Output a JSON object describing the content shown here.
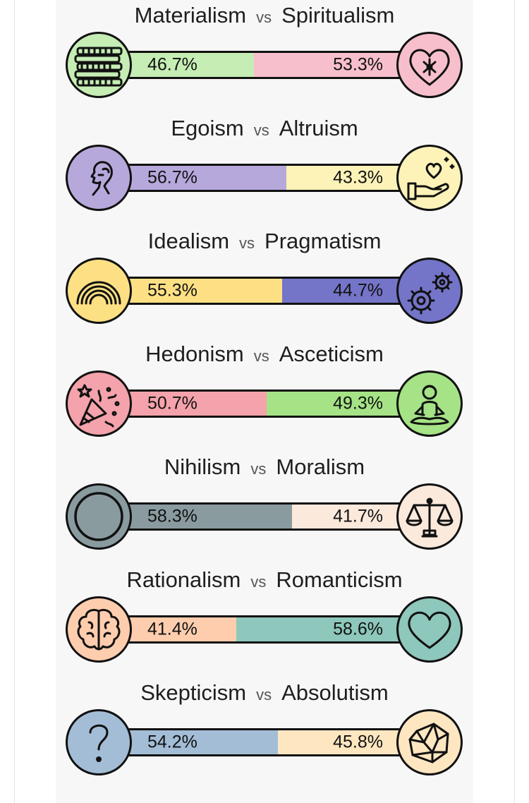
{
  "axes": [
    {
      "left": {
        "name": "Materialism",
        "pct": "46.7%",
        "value": 46.7,
        "color": "#c5edb4",
        "icon": "coins-icon"
      },
      "vs": "vs",
      "right": {
        "name": "Spiritualism",
        "pct": "53.3%",
        "value": 53.3,
        "color": "#f7bfcc",
        "icon": "heart-lotus-icon"
      }
    },
    {
      "left": {
        "name": "Egoism",
        "pct": "56.7%",
        "value": 56.7,
        "color": "#b7a8dc",
        "icon": "portrait-profile-icon"
      },
      "vs": "vs",
      "right": {
        "name": "Altruism",
        "pct": "43.3%",
        "value": 43.3,
        "color": "#fdf3b8",
        "icon": "hand-giving-heart-icon"
      }
    },
    {
      "left": {
        "name": "Idealism",
        "pct": "55.3%",
        "value": 55.3,
        "color": "#fde084",
        "icon": "rainbow-icon"
      },
      "vs": "vs",
      "right": {
        "name": "Pragmatism",
        "pct": "44.7%",
        "value": 44.7,
        "color": "#7475c8",
        "icon": "gears-icon"
      }
    },
    {
      "left": {
        "name": "Hedonism",
        "pct": "50.7%",
        "value": 50.7,
        "color": "#f4a2ab",
        "icon": "party-popper-icon"
      },
      "vs": "vs",
      "right": {
        "name": "Asceticism",
        "pct": "49.3%",
        "value": 49.3,
        "color": "#a5e386",
        "icon": "meditation-icon"
      }
    },
    {
      "left": {
        "name": "Nihilism",
        "pct": "58.3%",
        "value": 58.3,
        "color": "#8a9ba0",
        "icon": "empty-circle-icon"
      },
      "vs": "vs",
      "right": {
        "name": "Moralism",
        "pct": "41.7%",
        "value": 41.7,
        "color": "#fbe9dc",
        "icon": "scales-icon"
      }
    },
    {
      "left": {
        "name": "Rationalism",
        "pct": "41.4%",
        "value": 41.4,
        "color": "#fdcdae",
        "icon": "brain-icon"
      },
      "vs": "vs",
      "right": {
        "name": "Romanticism",
        "pct": "58.6%",
        "value": 58.6,
        "color": "#8ec7bc",
        "icon": "heart-icon"
      }
    },
    {
      "left": {
        "name": "Skepticism",
        "pct": "54.2%",
        "value": 54.2,
        "color": "#a3bdd6",
        "icon": "question-mark-icon"
      },
      "vs": "vs",
      "right": {
        "name": "Absolutism",
        "pct": "45.8%",
        "value": 45.8,
        "color": "#fde6c0",
        "icon": "crystal-icon"
      }
    }
  ]
}
